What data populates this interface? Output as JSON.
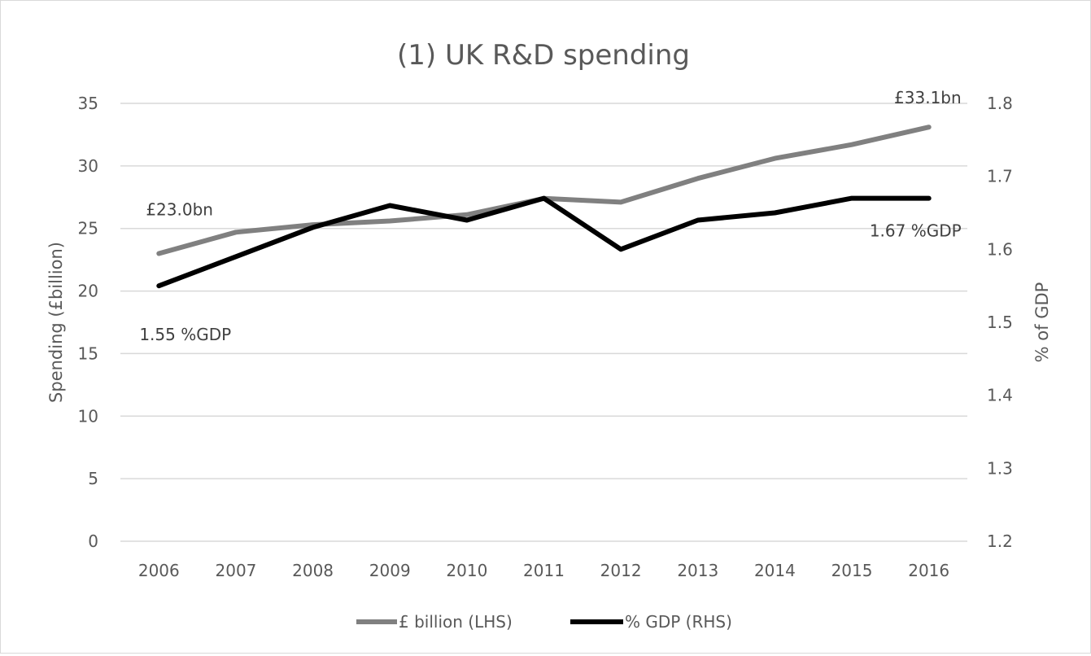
{
  "chart_data": {
    "type": "line",
    "title": "(1) UK R&D spending",
    "ylabel": "Spending (£billion)",
    "y2label": "% of GDP",
    "categories": [
      "2006",
      "2007",
      "2008",
      "2009",
      "2010",
      "2011",
      "2012",
      "2013",
      "2014",
      "2015",
      "2016"
    ],
    "ylim": [
      0,
      35
    ],
    "yticks": [
      "0",
      "5",
      "10",
      "15",
      "20",
      "25",
      "30",
      "35"
    ],
    "y2lim": [
      1.2,
      1.8
    ],
    "y2ticks": [
      "1.2",
      "1.3",
      "1.4",
      "1.5",
      "1.6",
      "1.7",
      "1.8"
    ],
    "grid": true,
    "legend_position": "bottom",
    "series": [
      {
        "name": "£ billion (LHS)",
        "axis": "left",
        "color": "#808080",
        "values": [
          23.0,
          24.7,
          25.3,
          25.6,
          26.1,
          27.4,
          27.1,
          29.0,
          30.6,
          31.7,
          33.1
        ]
      },
      {
        "name": "% GDP (RHS)",
        "axis": "right",
        "color": "#000000",
        "values": [
          1.55,
          1.59,
          1.63,
          1.66,
          1.64,
          1.67,
          1.6,
          1.64,
          1.65,
          1.67,
          1.67
        ]
      }
    ],
    "annotations": [
      {
        "text": "£23.0bn"
      },
      {
        "text": "£33.1bn"
      },
      {
        "text": "1.55 %GDP"
      },
      {
        "text": "1.67 %GDP"
      }
    ]
  }
}
